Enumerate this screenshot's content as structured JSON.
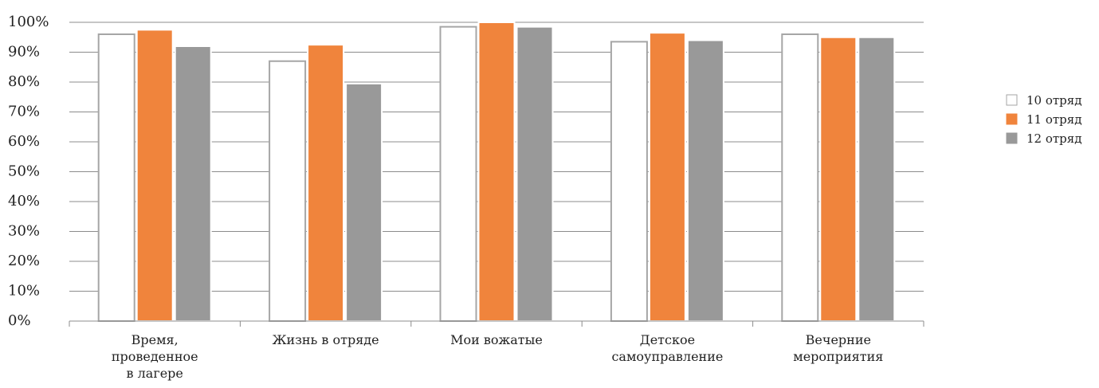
{
  "chart_data": {
    "type": "bar",
    "categories": [
      [
        "Время,",
        "проведенное",
        "в лагере"
      ],
      [
        "Жизнь в отряде"
      ],
      [
        "Мои вожатые"
      ],
      [
        "Детское",
        "самоуправление"
      ],
      [
        "Вечерние",
        "мероприятия"
      ]
    ],
    "series": [
      {
        "name": "10 отряд",
        "values": [
          96,
          87,
          98.5,
          93.5,
          96
        ],
        "color": "#ffffff",
        "stroke": "#a6a6a6"
      },
      {
        "name": "11 отряд",
        "values": [
          97.5,
          92.5,
          100,
          96.5,
          95
        ],
        "color": "#f0843c",
        "stroke": "#ffffff"
      },
      {
        "name": "12 отряд",
        "values": [
          92,
          79.5,
          98.5,
          94,
          95
        ],
        "color": "#999999",
        "stroke": "#ffffff"
      }
    ],
    "y_ticks": [
      "0%",
      "10%",
      "20%",
      "30%",
      "40%",
      "50%",
      "60%",
      "70%",
      "80%",
      "90%",
      "100%"
    ],
    "ylim": [
      0,
      100
    ],
    "grid": true,
    "legend_position": "right",
    "gridline_color": "#8c8c8c"
  }
}
